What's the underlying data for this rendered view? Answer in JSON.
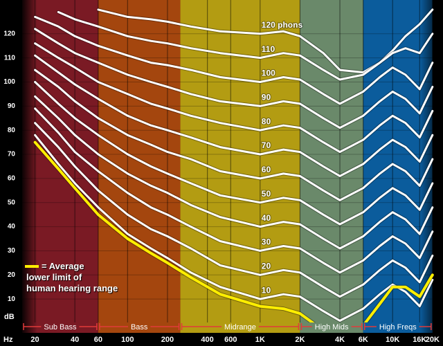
{
  "chart_data": {
    "type": "line",
    "x_label": "Hz",
    "y_label": "dB",
    "log_x": true,
    "xlim": [
      16,
      24000
    ],
    "ylim": [
      0,
      134
    ],
    "xticks": [
      20,
      40,
      60,
      100,
      200,
      400,
      600,
      {
        "value": 1000,
        "label": "1K"
      },
      {
        "value": 2000,
        "label": "2K"
      },
      {
        "value": 4000,
        "label": "4K"
      },
      {
        "value": 6000,
        "label": "6K"
      },
      {
        "value": 10000,
        "label": "10K"
      },
      {
        "value": 16000,
        "label": "16K"
      },
      {
        "value": 20000,
        "label": "20K"
      }
    ],
    "yticks": [
      10,
      20,
      30,
      40,
      50,
      60,
      70,
      80,
      90,
      100,
      110,
      120
    ],
    "grid": true,
    "bands": [
      {
        "name": "Sub Bass",
        "from": 16,
        "to": 60,
        "color": "#7a1a24"
      },
      {
        "name": "Bass",
        "from": 60,
        "to": 250,
        "color": "#a4460e"
      },
      {
        "name": "Midrange",
        "from": 250,
        "to": 2000,
        "color": "#b39c12"
      },
      {
        "name": "High Mids",
        "from": 2000,
        "to": 6000,
        "color": "#6a896a"
      },
      {
        "name": "High Freqs",
        "from": 6000,
        "to": 20000,
        "color": "#0b5c9c"
      }
    ],
    "x": [
      20,
      30,
      40,
      60,
      100,
      150,
      200,
      300,
      500,
      1000,
      1500,
      2000,
      3000,
      4000,
      6000,
      8000,
      10000,
      12500,
      16000,
      20000
    ],
    "series": [
      {
        "name": "120 phons",
        "color": "#ffffff",
        "values": [
          null,
          null,
          null,
          130,
          127,
          126,
          125,
          123,
          121,
          120,
          121,
          119,
          112,
          105,
          104,
          108,
          113,
          119,
          124,
          130
        ]
      },
      {
        "name": "110",
        "color": "#ffffff",
        "values": [
          null,
          129,
          126,
          123,
          119,
          117,
          116,
          114,
          112,
          110,
          112,
          111,
          105,
          101,
          103,
          108,
          112,
          114,
          112,
          120
        ]
      },
      {
        "name": "100",
        "color": "#ffffff",
        "values": [
          127,
          123,
          119,
          115,
          111,
          108,
          107,
          105,
          102,
          100,
          102,
          101,
          95,
          91,
          96,
          102,
          106,
          103,
          97,
          108
        ]
      },
      {
        "name": "90",
        "color": "#ffffff",
        "values": [
          122,
          116,
          112,
          108,
          103,
          100,
          98,
          95,
          92,
          90,
          92,
          91,
          85,
          81,
          86,
          92,
          96,
          93,
          87,
          98
        ]
      },
      {
        "name": "80",
        "color": "#ffffff",
        "values": [
          116,
          110,
          106,
          100,
          95,
          91,
          89,
          86,
          83,
          80,
          82,
          81,
          75,
          71,
          76,
          82,
          86,
          83,
          77,
          88
        ]
      },
      {
        "name": "70",
        "color": "#ffffff",
        "values": [
          111,
          104,
          99,
          93,
          86,
          82,
          80,
          77,
          73,
          70,
          72,
          71,
          65,
          61,
          66,
          72,
          76,
          73,
          67,
          78
        ]
      },
      {
        "name": "60",
        "color": "#ffffff",
        "values": [
          105,
          98,
          92,
          85,
          78,
          74,
          71,
          68,
          63,
          60,
          62,
          61,
          55,
          51,
          56,
          62,
          66,
          63,
          57,
          68
        ]
      },
      {
        "name": "50",
        "color": "#ffffff",
        "values": [
          100,
          91,
          85,
          78,
          70,
          65,
          62,
          58,
          53,
          50,
          52,
          51,
          45,
          41,
          46,
          52,
          56,
          53,
          47,
          58
        ]
      },
      {
        "name": "40",
        "color": "#ffffff",
        "values": [
          94,
          85,
          78,
          70,
          62,
          57,
          54,
          49,
          44,
          40,
          42,
          41,
          35,
          31,
          36,
          42,
          46,
          43,
          37,
          48
        ]
      },
      {
        "name": "30",
        "color": "#ffffff",
        "values": [
          89,
          79,
          71,
          63,
          54,
          48,
          45,
          40,
          34,
          30,
          32,
          31,
          25,
          21,
          26,
          32,
          36,
          33,
          27,
          38
        ]
      },
      {
        "name": "20",
        "color": "#ffffff",
        "values": [
          83,
          73,
          65,
          55,
          45,
          39,
          36,
          31,
          24,
          20,
          22,
          21,
          15,
          11,
          16,
          22,
          26,
          23,
          17,
          28
        ]
      },
      {
        "name": "10",
        "color": "#ffffff",
        "values": [
          78,
          66,
          58,
          48,
          37,
          31,
          27,
          21,
          15,
          10,
          12,
          11,
          5,
          1,
          6,
          12,
          16,
          13,
          7,
          18
        ]
      },
      {
        "name": "= Average\nlower limit of\nhuman hearing range",
        "color": "#ffee00",
        "legend": true,
        "values": [
          75,
          64,
          56,
          45,
          35,
          29,
          25,
          19,
          12,
          7,
          6,
          4,
          -3,
          -6,
          -1,
          8,
          15,
          15,
          11,
          20
        ]
      }
    ]
  }
}
